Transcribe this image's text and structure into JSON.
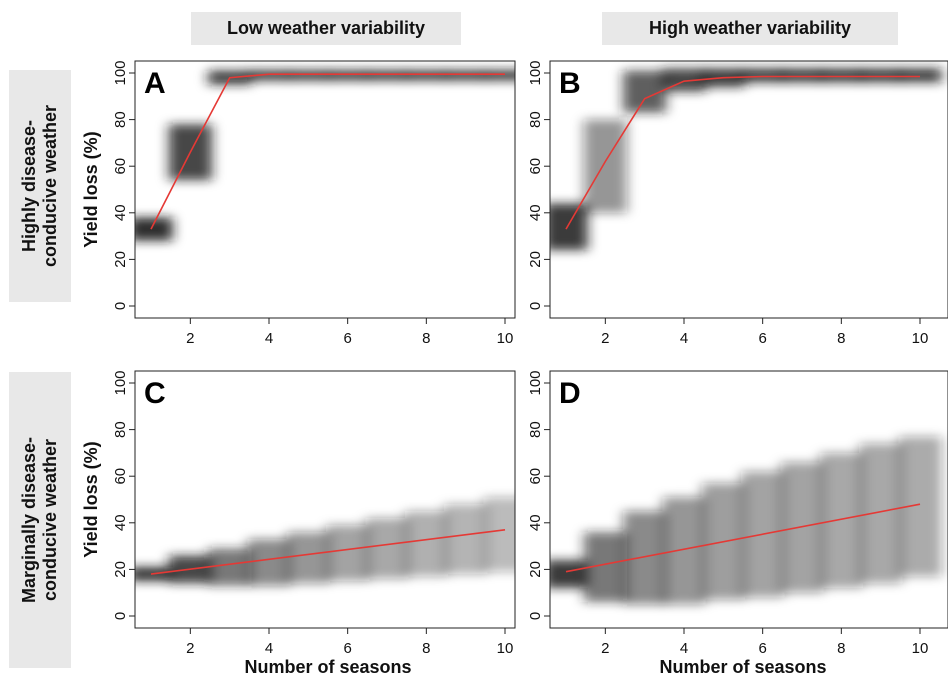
{
  "column_headers": [
    "Low weather variability",
    "High weather variability"
  ],
  "row_headers": [
    "Highly disease-\nconducive weather",
    "Marginally disease-\nconducive weather"
  ],
  "colors": {
    "trend_line": "#e53935",
    "density": "#1a1a1a",
    "header_bg": "#e8e8e8"
  },
  "chart_data": [
    {
      "type": "heatmap",
      "panel_label": "A",
      "xlabel": "",
      "ylabel": "Yield loss (%)",
      "xlim": [
        1,
        10
      ],
      "ylim": [
        0,
        100
      ],
      "xticks": [
        "2",
        "4",
        "6",
        "8",
        "10"
      ],
      "yticks": [
        "0",
        "20",
        "40",
        "60",
        "80",
        "100"
      ],
      "density": [
        {
          "x": 1,
          "y": 33,
          "spread": 5,
          "strength": 0.9
        },
        {
          "x": 2,
          "y": 66,
          "spread": 12,
          "strength": 0.8
        },
        {
          "x": 3,
          "y": 98,
          "spread": 3,
          "strength": 0.85
        },
        {
          "x": 4,
          "y": 99,
          "spread": 2,
          "strength": 0.9
        },
        {
          "x": 5,
          "y": 99,
          "spread": 2,
          "strength": 0.9
        },
        {
          "x": 6,
          "y": 99,
          "spread": 2,
          "strength": 0.9
        },
        {
          "x": 7,
          "y": 99,
          "spread": 2,
          "strength": 0.9
        },
        {
          "x": 8,
          "y": 99,
          "spread": 2,
          "strength": 0.9
        },
        {
          "x": 9,
          "y": 99,
          "spread": 2,
          "strength": 0.9
        },
        {
          "x": 10,
          "y": 99,
          "spread": 2,
          "strength": 0.9
        }
      ],
      "mean_line": {
        "x": [
          1,
          2,
          3,
          4,
          5,
          6,
          7,
          8,
          9,
          10
        ],
        "y": [
          33,
          66,
          98,
          99.5,
          99.5,
          99.5,
          99.5,
          99.5,
          99.5,
          99.5
        ]
      }
    },
    {
      "type": "heatmap",
      "panel_label": "B",
      "xlabel": "",
      "ylabel": "",
      "xlim": [
        1,
        10
      ],
      "ylim": [
        0,
        100
      ],
      "xticks": [
        "2",
        "4",
        "6",
        "8",
        "10"
      ],
      "yticks": [
        "0",
        "20",
        "40",
        "60",
        "80",
        "100"
      ],
      "density": [
        {
          "x": 1,
          "y": 34,
          "spread": 10,
          "strength": 0.85
        },
        {
          "x": 2,
          "y": 60,
          "spread": 20,
          "strength": 0.45
        },
        {
          "x": 3,
          "y": 92,
          "spread": 9,
          "strength": 0.7
        },
        {
          "x": 4,
          "y": 97,
          "spread": 5,
          "strength": 0.8
        },
        {
          "x": 5,
          "y": 98,
          "spread": 4,
          "strength": 0.85
        },
        {
          "x": 6,
          "y": 99,
          "spread": 3,
          "strength": 0.85
        },
        {
          "x": 7,
          "y": 99,
          "spread": 3,
          "strength": 0.85
        },
        {
          "x": 8,
          "y": 99,
          "spread": 3,
          "strength": 0.85
        },
        {
          "x": 9,
          "y": 99,
          "spread": 3,
          "strength": 0.85
        },
        {
          "x": 10,
          "y": 99,
          "spread": 3,
          "strength": 0.85
        }
      ],
      "mean_line": {
        "x": [
          1,
          2,
          3,
          4,
          5,
          6,
          7,
          8,
          9,
          10
        ],
        "y": [
          33,
          62,
          89,
          96.5,
          98,
          98.5,
          98.5,
          98.5,
          98.5,
          98.5
        ]
      }
    },
    {
      "type": "heatmap",
      "panel_label": "C",
      "xlabel": "Number of seasons",
      "ylabel": "Yield loss (%)",
      "xlim": [
        1,
        10
      ],
      "ylim": [
        0,
        100
      ],
      "xticks": [
        "2",
        "4",
        "6",
        "8",
        "10"
      ],
      "yticks": [
        "0",
        "20",
        "40",
        "60",
        "80",
        "100"
      ],
      "density": [
        {
          "x": 1,
          "y": 18,
          "spread": 3,
          "strength": 0.9
        },
        {
          "x": 2,
          "y": 20,
          "spread": 6,
          "strength": 0.8
        },
        {
          "x": 3,
          "y": 21,
          "spread": 8,
          "strength": 0.6
        },
        {
          "x": 4,
          "y": 23,
          "spread": 10,
          "strength": 0.5
        },
        {
          "x": 5,
          "y": 25,
          "spread": 11,
          "strength": 0.45
        },
        {
          "x": 6,
          "y": 27,
          "spread": 12,
          "strength": 0.4
        },
        {
          "x": 7,
          "y": 29,
          "spread": 13,
          "strength": 0.38
        },
        {
          "x": 8,
          "y": 31,
          "spread": 14,
          "strength": 0.35
        },
        {
          "x": 9,
          "y": 33,
          "spread": 15,
          "strength": 0.33
        },
        {
          "x": 10,
          "y": 35,
          "spread": 16,
          "strength": 0.3
        }
      ],
      "mean_line": {
        "x": [
          1,
          10
        ],
        "y": [
          18,
          37
        ]
      }
    },
    {
      "type": "heatmap",
      "panel_label": "D",
      "xlabel": "Number of seasons",
      "ylabel": "",
      "xlim": [
        1,
        10
      ],
      "ylim": [
        0,
        100
      ],
      "xticks": [
        "2",
        "4",
        "6",
        "8",
        "10"
      ],
      "yticks": [
        "0",
        "20",
        "40",
        "60",
        "80",
        "100"
      ],
      "density": [
        {
          "x": 1,
          "y": 18,
          "spread": 6,
          "strength": 0.85
        },
        {
          "x": 2,
          "y": 21,
          "spread": 15,
          "strength": 0.6
        },
        {
          "x": 3,
          "y": 25,
          "spread": 20,
          "strength": 0.5
        },
        {
          "x": 4,
          "y": 28,
          "spread": 23,
          "strength": 0.45
        },
        {
          "x": 5,
          "y": 32,
          "spread": 25,
          "strength": 0.42
        },
        {
          "x": 6,
          "y": 35,
          "spread": 27,
          "strength": 0.4
        },
        {
          "x": 7,
          "y": 38,
          "spread": 28,
          "strength": 0.4
        },
        {
          "x": 8,
          "y": 41,
          "spread": 29,
          "strength": 0.38
        },
        {
          "x": 9,
          "y": 44,
          "spread": 30,
          "strength": 0.38
        },
        {
          "x": 10,
          "y": 47,
          "spread": 30,
          "strength": 0.37
        }
      ],
      "mean_line": {
        "x": [
          1,
          10
        ],
        "y": [
          19,
          48
        ]
      }
    }
  ]
}
